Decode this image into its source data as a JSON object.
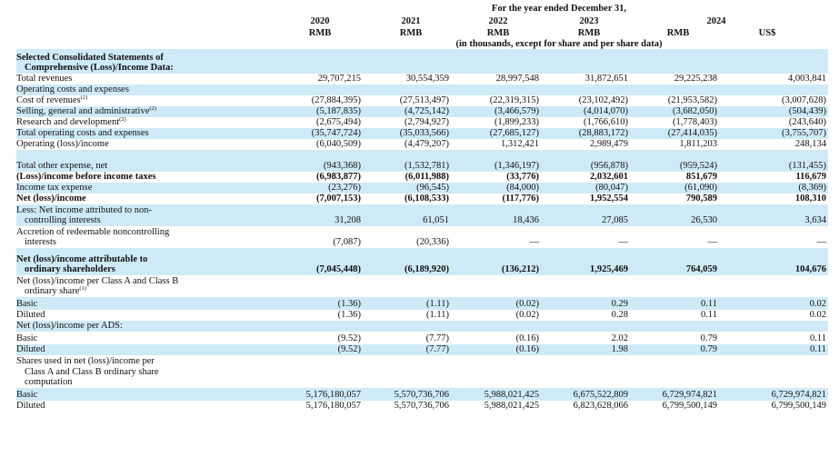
{
  "header": {
    "period_label": "For the year ended December 31,",
    "units_note": "(in thousands, except for share and per share data)",
    "years": [
      "2020",
      "2021",
      "2022",
      "2023",
      "2024",
      ""
    ],
    "currencies": [
      "RMB",
      "RMB",
      "RMB",
      "RMB",
      "RMB",
      "US$"
    ]
  },
  "rows": [
    {
      "h": 27,
      "bold": true,
      "ind": false,
      "lines": [
        "Selected Consolidated Statements of",
        "Comprehensive (Loss)/Income Data:"
      ],
      "sup": "",
      "values": [
        "",
        "",
        "",
        "",
        "",
        ""
      ]
    },
    {
      "h": 12,
      "bold": false,
      "ind": false,
      "lines": [
        "Total revenues"
      ],
      "sup": "",
      "values": [
        "29,707,215",
        "30,554,359",
        "28,997,548",
        "31,872,651",
        "29,225,238",
        "4,003,841"
      ]
    },
    {
      "h": 12,
      "bold": false,
      "ind": false,
      "lines": [
        "Operating costs and expenses"
      ],
      "sup": "",
      "values": [
        "",
        "",
        "",
        "",
        "",
        ""
      ]
    },
    {
      "h": 12,
      "bold": false,
      "ind": false,
      "lines": [
        "Cost of revenues"
      ],
      "sup": "(2)",
      "values": [
        "(27,884,395)",
        "(27,513,497)",
        "(22,319,315)",
        "(23,102,492)",
        "(21,953,582)",
        "(3,007,628)"
      ]
    },
    {
      "h": 12,
      "bold": false,
      "ind": false,
      "lines": [
        "Selling, general and administrative"
      ],
      "sup": "(2)",
      "values": [
        "(5,187,835)",
        "(4,725,142)",
        "(3,466,579)",
        "(4,014,070)",
        "(3,682,050)",
        "(504,439)"
      ]
    },
    {
      "h": 12,
      "bold": false,
      "ind": false,
      "lines": [
        "Research and development"
      ],
      "sup": "(2)",
      "values": [
        "(2,675,494)",
        "(2,794,927)",
        "(1,899,233)",
        "(1,766,610)",
        "(1,778,403)",
        "(243,640)"
      ]
    },
    {
      "h": 12,
      "bold": false,
      "ind": false,
      "lines": [
        "Total operating costs and expenses"
      ],
      "sup": "",
      "values": [
        "(35,747,724)",
        "(35,033,566)",
        "(27,685,127)",
        "(28,883,172)",
        "(27,414,035)",
        "(3,755,707)"
      ]
    },
    {
      "h": 12,
      "bold": false,
      "ind": false,
      "lines": [
        "Operating (loss)/income"
      ],
      "sup": "",
      "values": [
        "(6,040,509)",
        "(4,479,207)",
        "1,312,421",
        "2,989,479",
        "1,811,203",
        "248,134"
      ]
    },
    {
      "h": 24,
      "bold": false,
      "ind": false,
      "lines": [
        "Total other expense, net"
      ],
      "sup": "",
      "values": [
        "(943,368)",
        "(1,532,781)",
        "(1,346,197)",
        "(956,878)",
        "(959,524)",
        "(131,455)"
      ]
    },
    {
      "h": 12,
      "bold": true,
      "ind": false,
      "lines": [
        "(Loss)/income before income taxes"
      ],
      "sup": "",
      "values": [
        "(6,983,877)",
        "(6,011,988)",
        "(33,776)",
        "2,032,601",
        "851,679",
        "116,679"
      ]
    },
    {
      "h": 12,
      "bold": false,
      "ind": false,
      "lines": [
        "Income tax expense"
      ],
      "sup": "",
      "values": [
        "(23,276)",
        "(96,545)",
        "(84,000)",
        "(80,047)",
        "(61,090)",
        "(8,369)"
      ]
    },
    {
      "h": 12,
      "bold": true,
      "ind": false,
      "lines": [
        "Net (loss)/income"
      ],
      "sup": "",
      "values": [
        "(7,007,153)",
        "(6,108,533)",
        "(117,776)",
        "1,952,554",
        "790,589",
        "108,310"
      ]
    },
    {
      "h": 24,
      "bold": false,
      "ind": false,
      "lines": [
        "Less: Net income attributed to non-",
        "controlling interests"
      ],
      "sup": "",
      "values": [
        "31,208",
        "61,051",
        "18,436",
        "27,085",
        "26,530",
        "3,634"
      ]
    },
    {
      "h": 24,
      "bold": false,
      "ind": false,
      "lines": [
        "Accretion of redeemable noncontrolling",
        "interests"
      ],
      "sup": "",
      "values": [
        "(7,087)",
        "(20,336)",
        "—",
        "—",
        "—",
        "—"
      ]
    },
    {
      "h": 30,
      "bold": true,
      "ind": false,
      "lines": [
        "Net (loss)/income attributable to",
        "ordinary shareholders"
      ],
      "sup": "",
      "values": [
        "(7,045,448)",
        "(6,189,920)",
        "(136,212)",
        "1,925,469",
        "764,059",
        "104,676"
      ]
    },
    {
      "h": 24,
      "bold": false,
      "ind": false,
      "lines": [
        "Net (loss)/income per Class A and Class B",
        "ordinary share"
      ],
      "sup": "(1)",
      "values": [
        "",
        "",
        "",
        "",
        "",
        ""
      ]
    },
    {
      "h": 14,
      "bold": false,
      "ind": false,
      "lines": [
        "Basic"
      ],
      "sup": "",
      "values": [
        "(1.36)",
        "(1.11)",
        "(0.02)",
        "0.29",
        "0.11",
        "0.02"
      ]
    },
    {
      "h": 12,
      "bold": false,
      "ind": false,
      "lines": [
        "Diluted"
      ],
      "sup": "",
      "values": [
        "(1.36)",
        "(1.11)",
        "(0.02)",
        "0.28",
        "0.11",
        "0.02"
      ]
    },
    {
      "h": 12,
      "bold": false,
      "ind": false,
      "lines": [
        "Net (loss)/income per ADS:"
      ],
      "sup": "",
      "values": [
        "",
        "",
        "",
        "",
        "",
        ""
      ]
    },
    {
      "h": 14,
      "bold": false,
      "ind": false,
      "lines": [
        "Basic"
      ],
      "sup": "",
      "values": [
        "(9.52)",
        "(7.77)",
        "(0.16)",
        "2.02",
        "0.79",
        "0.11"
      ]
    },
    {
      "h": 12,
      "bold": false,
      "ind": false,
      "lines": [
        "Diluted"
      ],
      "sup": "",
      "values": [
        "(9.52)",
        "(7.77)",
        "(0.16)",
        "1.98",
        "0.79",
        "0.11"
      ]
    },
    {
      "h": 36,
      "bold": false,
      "ind": false,
      "lines": [
        "Shares used in net (loss)/income per",
        "Class A and Class B ordinary share",
        "computation"
      ],
      "sup": "",
      "values": [
        "",
        "",
        "",
        "",
        "",
        ""
      ]
    },
    {
      "h": 14,
      "bold": false,
      "ind": false,
      "lines": [
        "Basic"
      ],
      "sup": "",
      "values": [
        "5,176,180,057",
        "5,570,736,706",
        "5,988,021,425",
        "6,675,522,809",
        "6,729,974,821",
        "6,729,974,821"
      ]
    },
    {
      "h": 12,
      "bold": false,
      "ind": false,
      "lines": [
        "Diluted"
      ],
      "sup": "",
      "values": [
        "5,176,180,057",
        "5,570,736,706",
        "5,988,021,425",
        "6,823,628,066",
        "6,799,500,149",
        "6,799,500,149"
      ]
    }
  ]
}
